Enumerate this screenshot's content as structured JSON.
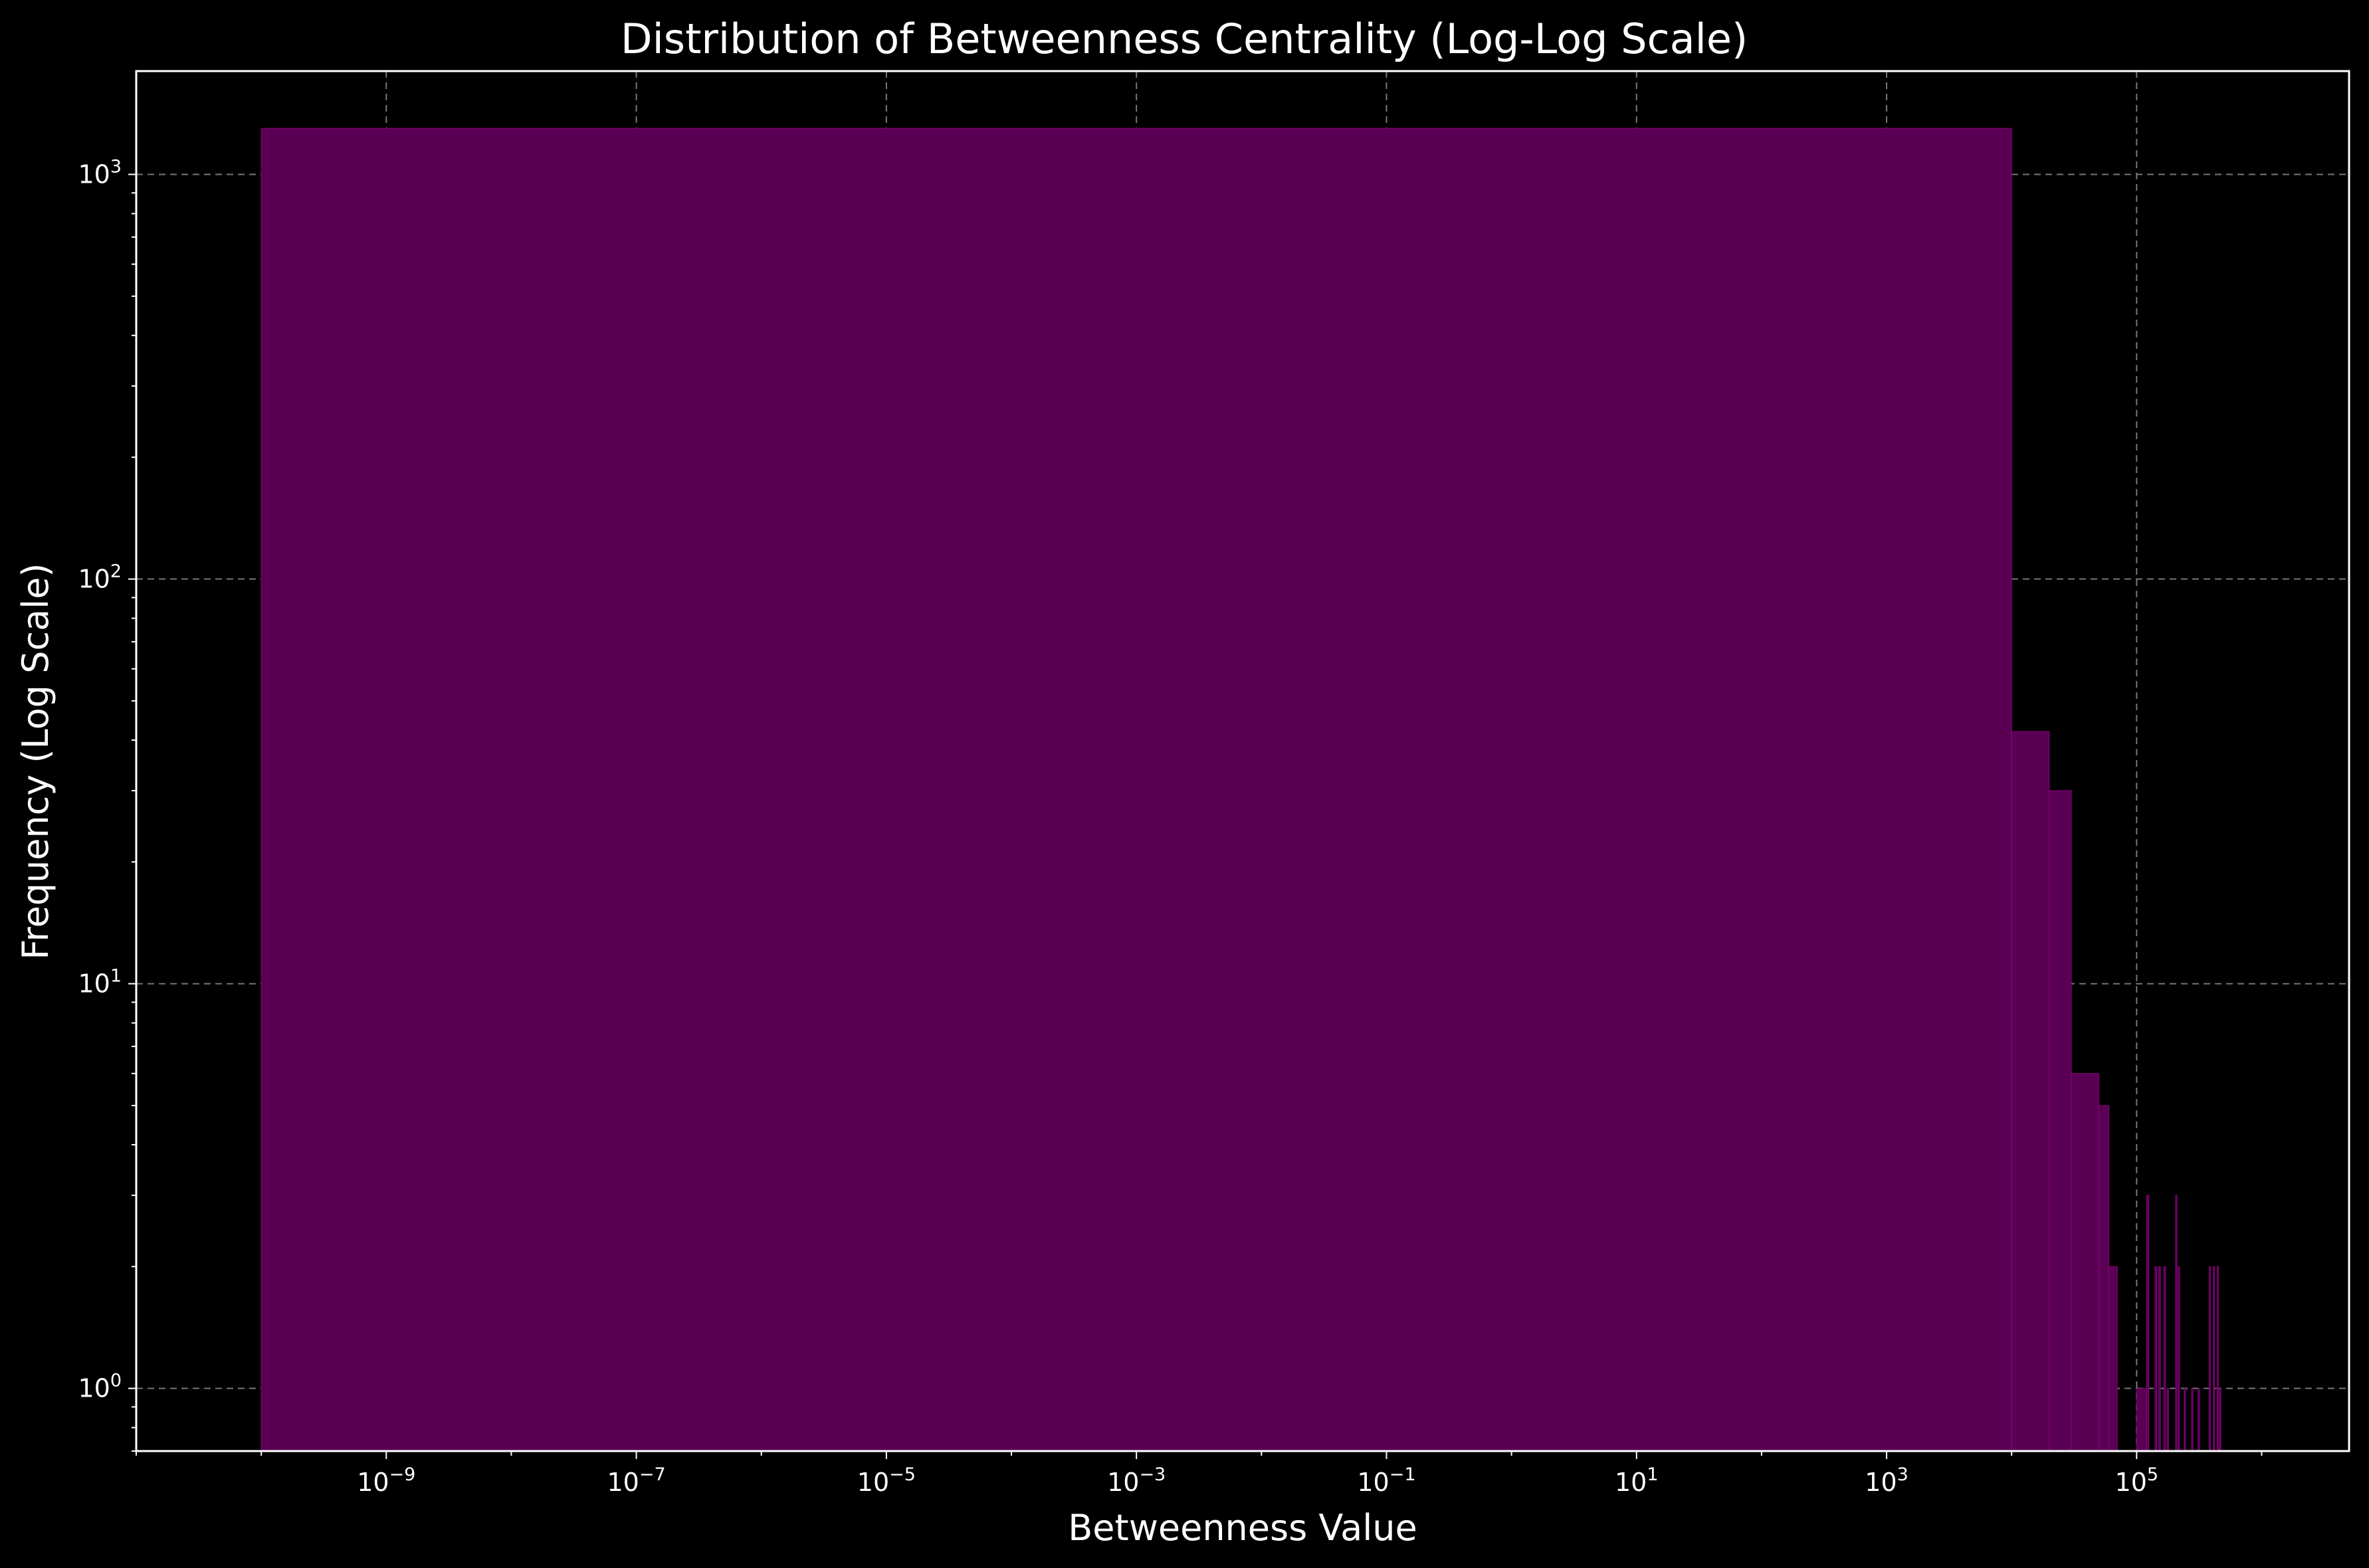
{
  "chart_data": {
    "type": "bar",
    "title": "Distribution of Betweenness Centrality (Log-Log Scale)",
    "xlabel": "Betweenness Value",
    "ylabel": "Frequency (Log Scale)",
    "x_scale": "log",
    "y_scale": "log",
    "xlim": [
      1e-11,
      5000000.0
    ],
    "ylim": [
      0.7,
      1800
    ],
    "grid": true,
    "legend": "none",
    "colors": {
      "background": "#000000",
      "bar": "#5a0054",
      "bar_edge": "#8a0080",
      "axes": "#ffffff",
      "grid": "#777777"
    },
    "x_ticks": [
      {
        "base": "10",
        "exp": "−9",
        "value": 1e-09
      },
      {
        "base": "10",
        "exp": "−7",
        "value": 1e-07
      },
      {
        "base": "10",
        "exp": "−5",
        "value": 1e-05
      },
      {
        "base": "10",
        "exp": "−3",
        "value": 0.001
      },
      {
        "base": "10",
        "exp": "−1",
        "value": 0.1
      },
      {
        "base": "10",
        "exp": "1",
        "value": 10
      },
      {
        "base": "10",
        "exp": "3",
        "value": 1000
      },
      {
        "base": "10",
        "exp": "5",
        "value": 100000
      }
    ],
    "y_ticks": [
      {
        "base": "10",
        "exp": "0",
        "value": 1
      },
      {
        "base": "10",
        "exp": "1",
        "value": 10
      },
      {
        "base": "10",
        "exp": "2",
        "value": 100
      },
      {
        "base": "10",
        "exp": "3",
        "value": 1000
      }
    ],
    "bins": [
      {
        "x0": 1e-10,
        "x1": 10000,
        "count": 1300
      },
      {
        "x0": 10000,
        "x1": 20000,
        "count": 42
      },
      {
        "x0": 20000,
        "x1": 30000,
        "count": 30
      },
      {
        "x0": 30000,
        "x1": 50000,
        "count": 6
      },
      {
        "x0": 50000,
        "x1": 60000,
        "count": 5
      },
      {
        "x0": 60000,
        "x1": 70000,
        "count": 2
      },
      {
        "x0": 100000,
        "x1": 120000,
        "count": 1
      },
      {
        "x0": 120000,
        "x1": 125000,
        "count": 3
      },
      {
        "x0": 140000,
        "x1": 145000,
        "count": 2
      },
      {
        "x0": 150000,
        "x1": 155000,
        "count": 2
      },
      {
        "x0": 165000,
        "x1": 170000,
        "count": 2
      },
      {
        "x0": 175000,
        "x1": 180000,
        "count": 1
      },
      {
        "x0": 205000,
        "x1": 210000,
        "count": 3
      },
      {
        "x0": 215000,
        "x1": 220000,
        "count": 2
      },
      {
        "x0": 240000,
        "x1": 245000,
        "count": 1
      },
      {
        "x0": 275000,
        "x1": 280000,
        "count": 1
      },
      {
        "x0": 310000,
        "x1": 315000,
        "count": 1
      },
      {
        "x0": 380000,
        "x1": 385000,
        "count": 2
      },
      {
        "x0": 410000,
        "x1": 415000,
        "count": 2
      },
      {
        "x0": 440000,
        "x1": 445000,
        "count": 2
      },
      {
        "x0": 460000,
        "x1": 465000,
        "count": 1
      }
    ]
  }
}
